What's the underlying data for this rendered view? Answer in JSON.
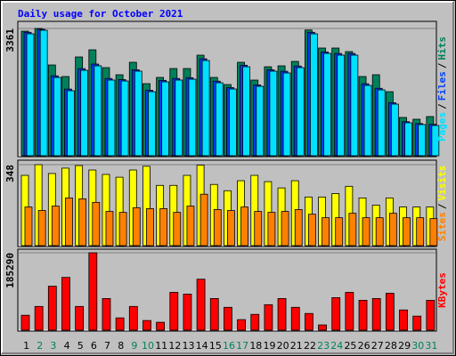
{
  "title": "Daily usage for October 2021",
  "legend_separator": "/",
  "chart_data": [
    {
      "type": "bar",
      "ylim": [
        0,
        3361
      ],
      "yticks": [
        3361
      ],
      "series": [
        {
          "name": "Hits",
          "color": "#00805c",
          "values": [
            3290,
            3361,
            2397,
            2092,
            2609,
            2797,
            2327,
            2139,
            2468,
            1904,
            2068,
            2303,
            2303,
            2656,
            2068,
            1880,
            2468,
            1998,
            2350,
            2374,
            2491,
            3320,
            2844,
            2844,
            2750,
            2092,
            2139,
            1692,
            1011,
            964,
            1034
          ]
        },
        {
          "name": "Files",
          "color": "#0040ff",
          "values": [
            3260,
            3340,
            2110,
            1760,
            2300,
            2420,
            2040,
            2010,
            2270,
            1730,
            1990,
            2040,
            2060,
            2560,
            1970,
            1800,
            2390,
            1870,
            2270,
            2230,
            2370,
            3260,
            2740,
            2700,
            2700,
            1900,
            1780,
            1400,
            900,
            850,
            830
          ]
        },
        {
          "name": "Pages",
          "color": "#00e0ff",
          "values": [
            3220,
            3314,
            2068,
            1716,
            2256,
            2374,
            1998,
            1974,
            2233,
            1692,
            1951,
            1998,
            2021,
            2515,
            1927,
            1763,
            2350,
            1833,
            2233,
            2186,
            2327,
            3220,
            2703,
            2656,
            2656,
            1857,
            1739,
            1363,
            870,
            823,
            799
          ]
        }
      ]
    },
    {
      "type": "bar",
      "ylim": [
        0,
        348
      ],
      "yticks": [
        348
      ],
      "series": [
        {
          "name": "Visits",
          "color": "#ffff00",
          "values": [
            302,
            348,
            310,
            333,
            344,
            325,
            306,
            294,
            325,
            341,
            259,
            259,
            302,
            346,
            263,
            236,
            279,
            302,
            275,
            248,
            279,
            209,
            209,
            224,
            255,
            205,
            174,
            205,
            166,
            166,
            166
          ]
        },
        {
          "name": "Sites",
          "color": "#ff8000",
          "values": [
            166,
            151,
            170,
            205,
            201,
            186,
            147,
            143,
            163,
            159,
            159,
            143,
            170,
            221,
            155,
            151,
            166,
            147,
            143,
            147,
            155,
            135,
            120,
            120,
            139,
            120,
            120,
            139,
            120,
            120,
            116
          ]
        }
      ]
    },
    {
      "type": "bar",
      "ylim": [
        0,
        185290
      ],
      "yticks": [
        185290
      ],
      "categories": [
        "1",
        "2",
        "3",
        "4",
        "5",
        "6",
        "7",
        "8",
        "9",
        "10",
        "11",
        "12",
        "13",
        "14",
        "15",
        "16",
        "17",
        "18",
        "19",
        "20",
        "21",
        "22",
        "23",
        "24",
        "25",
        "26",
        "27",
        "28",
        "29",
        "30",
        "31"
      ],
      "category_colors": [
        "#000000",
        "#00805c",
        "#00805c",
        "#000000",
        "#000000",
        "#000000",
        "#000000",
        "#000000",
        "#00805c",
        "#00805c",
        "#000000",
        "#000000",
        "#000000",
        "#000000",
        "#000000",
        "#00805c",
        "#00805c",
        "#000000",
        "#000000",
        "#000000",
        "#000000",
        "#000000",
        "#00805c",
        "#00805c",
        "#000000",
        "#000000",
        "#000000",
        "#000000",
        "#000000",
        "#00805c",
        "#00805c"
      ],
      "series": [
        {
          "name": "KBytes",
          "color": "#ff0000",
          "values": [
            35796,
            56851,
            105280,
            126336,
            56851,
            185290,
            75802,
            29478,
            56851,
            23162,
            18950,
            90541,
            86330,
            122125,
            75802,
            54746,
            25267,
            37901,
            61062,
            75802,
            54746,
            40006,
            12634,
            77907,
            90541,
            71590,
            75802,
            88435,
            48429,
            33690,
            71590
          ]
        }
      ]
    }
  ]
}
